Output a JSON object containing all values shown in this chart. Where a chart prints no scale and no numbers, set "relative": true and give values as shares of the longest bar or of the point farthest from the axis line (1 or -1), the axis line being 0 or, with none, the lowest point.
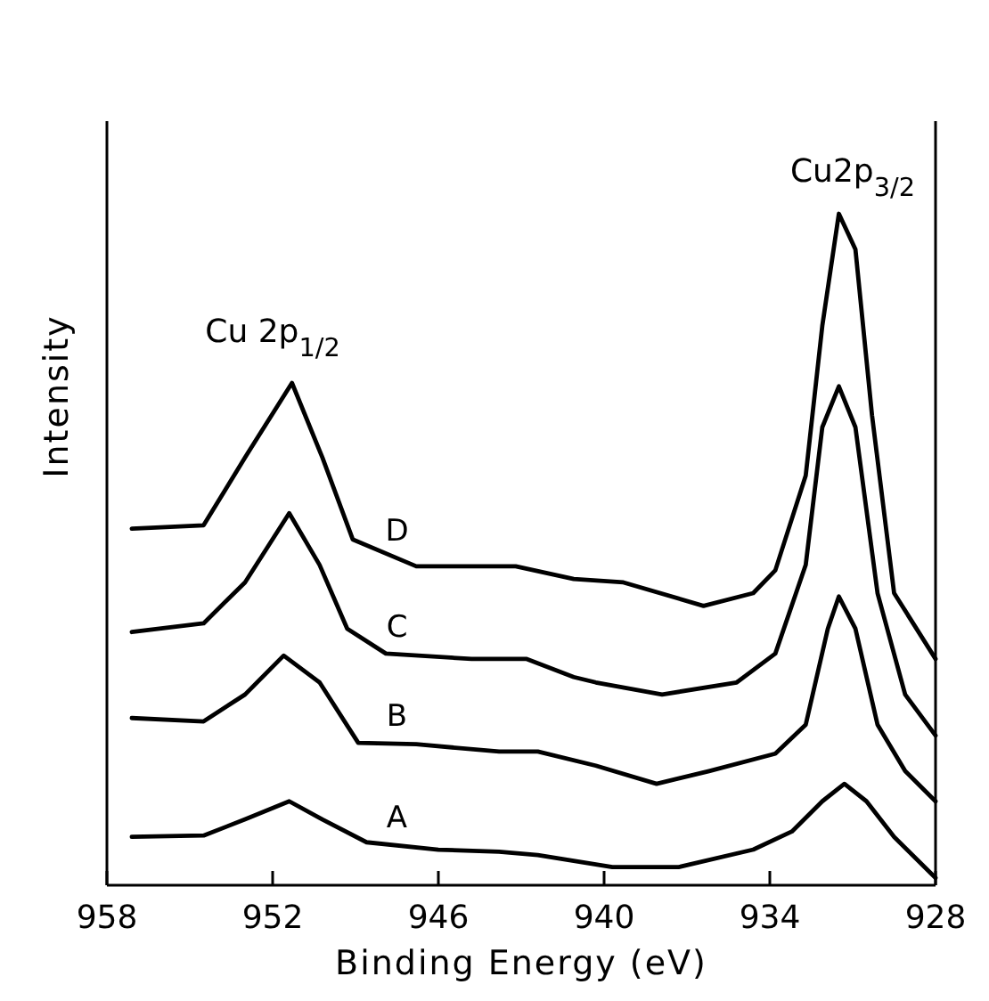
{
  "chart_data": {
    "type": "line",
    "relative": true,
    "xlabel": "Binding Energy (eV)",
    "ylabel": "Intensity",
    "xlim": [
      958,
      928
    ],
    "xticks": [
      958,
      952,
      946,
      940,
      934,
      928
    ],
    "line_style": "solid",
    "marker": "none",
    "legend": false,
    "grid": false,
    "annotations": [
      "Cu 2p$_{1/2}$",
      "Cu2p$_{3/2}$"
    ],
    "series": [
      {
        "name": "D",
        "color": "#000000",
        "x": [
          957.1,
          954.5,
          953.0,
          951.3,
          950.2,
          949.1,
          946.8,
          943.2,
          941.1,
          939.3,
          936.4,
          934.6,
          933.8,
          932.7,
          932.1,
          931.5,
          930.9,
          930.3,
          929.5,
          928
        ],
        "values": [
          0.531,
          0.536,
          0.637,
          0.748,
          0.637,
          0.515,
          0.475,
          0.475,
          0.456,
          0.451,
          0.416,
          0.435,
          0.469,
          0.61,
          0.833,
          1,
          0.947,
          0.7,
          0.435,
          0.337
        ]
      },
      {
        "name": "C",
        "color": "#000000",
        "x": [
          957.1,
          954.5,
          953.0,
          951.4,
          950.3,
          949.3,
          947.9,
          944.8,
          942.8,
          941.1,
          940.3,
          937.9,
          935.2,
          933.8,
          932.7,
          932.1,
          931.5,
          930.9,
          930.1,
          929.1,
          928
        ],
        "values": [
          0.377,
          0.39,
          0.451,
          0.554,
          0.477,
          0.382,
          0.345,
          0.337,
          0.337,
          0.31,
          0.302,
          0.284,
          0.302,
          0.345,
          0.477,
          0.682,
          0.743,
          0.682,
          0.435,
          0.284,
          0.223
        ]
      },
      {
        "name": "B",
        "color": "#000000",
        "x": [
          957.1,
          954.5,
          953.0,
          951.6,
          950.3,
          948.9,
          946.8,
          943.8,
          942.4,
          940.3,
          938.1,
          936.2,
          933.8,
          932.7,
          931.9,
          931.5,
          930.9,
          930.1,
          929.1,
          928
        ],
        "values": [
          0.249,
          0.244,
          0.284,
          0.342,
          0.302,
          0.212,
          0.21,
          0.199,
          0.199,
          0.178,
          0.151,
          0.17,
          0.196,
          0.239,
          0.382,
          0.43,
          0.382,
          0.239,
          0.17,
          0.125
        ]
      },
      {
        "name": "A",
        "color": "#000000",
        "x": [
          957.1,
          954.5,
          953.0,
          951.4,
          950.2,
          948.6,
          946.0,
          943.8,
          942.4,
          939.7,
          937.3,
          934.6,
          933.2,
          932.1,
          931.3,
          930.5,
          929.5,
          928
        ],
        "values": [
          0.072,
          0.074,
          0.098,
          0.125,
          0.098,
          0.064,
          0.053,
          0.05,
          0.045,
          0.027,
          0.027,
          0.053,
          0.08,
          0.125,
          0.151,
          0.125,
          0.072,
          0.011
        ]
      }
    ]
  }
}
